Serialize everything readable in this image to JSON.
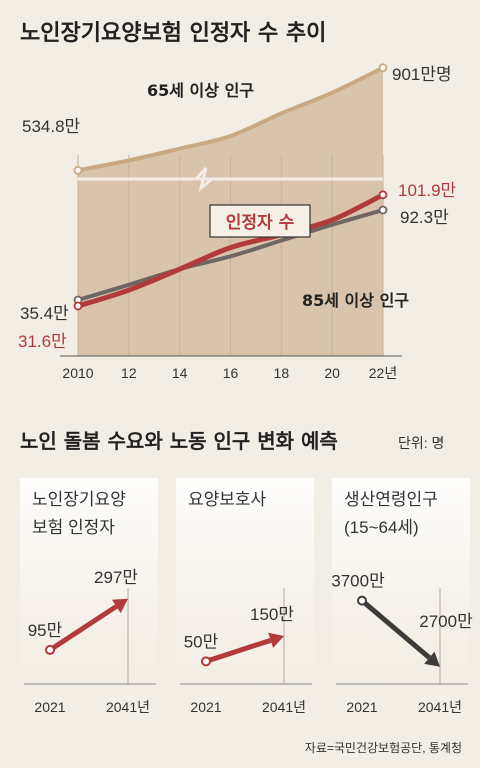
{
  "section1": {
    "title": "노인장기요양보험 인정자 수 추이",
    "x_labels": [
      "2010",
      "12",
      "14",
      "16",
      "18",
      "20",
      "22년"
    ],
    "top_series_label": "65세 이상 인구",
    "top_start_value": "534.8만",
    "top_end_value": "901만명",
    "recognized_label": "인정자 수",
    "recognized_start_value": "31.6만",
    "recognized_end_value": "101.9만",
    "over85_label": "85세 이상 인구",
    "over85_start_value": "35.4만",
    "over85_end_value": "92.3만"
  },
  "section2": {
    "title": "노인 돌봄 수요와 노동 인구 변화 예측",
    "unit": "단위: 명",
    "panels": [
      {
        "label_line1": "노인장기요양",
        "label_line2": "보험 인정자",
        "start_value": "95만",
        "end_value": "297만",
        "start_year": "2021",
        "end_year": "2041년"
      },
      {
        "label_line1": "요양보호사",
        "label_line2": "",
        "start_value": "50만",
        "end_value": "150만",
        "start_year": "2021",
        "end_year": "2041년"
      },
      {
        "label_line1": "생산연령인구",
        "label_line2": "(15~64세)",
        "start_value": "3700만",
        "end_value": "2700만",
        "start_year": "2021",
        "end_year": "2041년"
      }
    ],
    "source": "자료=국민건강보험공단, 통계청"
  },
  "colors": {
    "background": "#f3eee5",
    "area_fill": "#d9c3aa",
    "pop65_line": "#c9a982",
    "recognized_line": "#b23a3a",
    "over85_line": "#6e6660",
    "decline_arrow": "#3e3c3a"
  },
  "chart_data": [
    {
      "type": "line",
      "title": "노인장기요양보험 인정자 수 추이",
      "x": [
        2010,
        2012,
        2014,
        2016,
        2018,
        2020,
        2022
      ],
      "series": [
        {
          "name": "65세 이상 인구",
          "values": [
            534.8,
            570,
            612,
            657,
            738,
            812,
            901
          ]
        },
        {
          "name": "인정자 수",
          "values": [
            31.6,
            41.7,
            54.9,
            68.5,
            76.7,
            86,
            101.9
          ]
        },
        {
          "name": "85세 이상 인구",
          "values": [
            35.4,
            45,
            55,
            63,
            73,
            83,
            92.3
          ]
        }
      ],
      "unit": "만명"
    },
    {
      "type": "line",
      "title": "노인 돌봄 수요와 노동 인구 변화 예측",
      "x": [
        2021,
        2041
      ],
      "series": [
        {
          "name": "노인장기요양 보험 인정자",
          "values": [
            95,
            297
          ]
        },
        {
          "name": "요양보호사",
          "values": [
            50,
            150
          ]
        },
        {
          "name": "생산연령인구 (15~64세)",
          "values": [
            3700,
            2700
          ]
        }
      ],
      "unit": "만명"
    }
  ]
}
